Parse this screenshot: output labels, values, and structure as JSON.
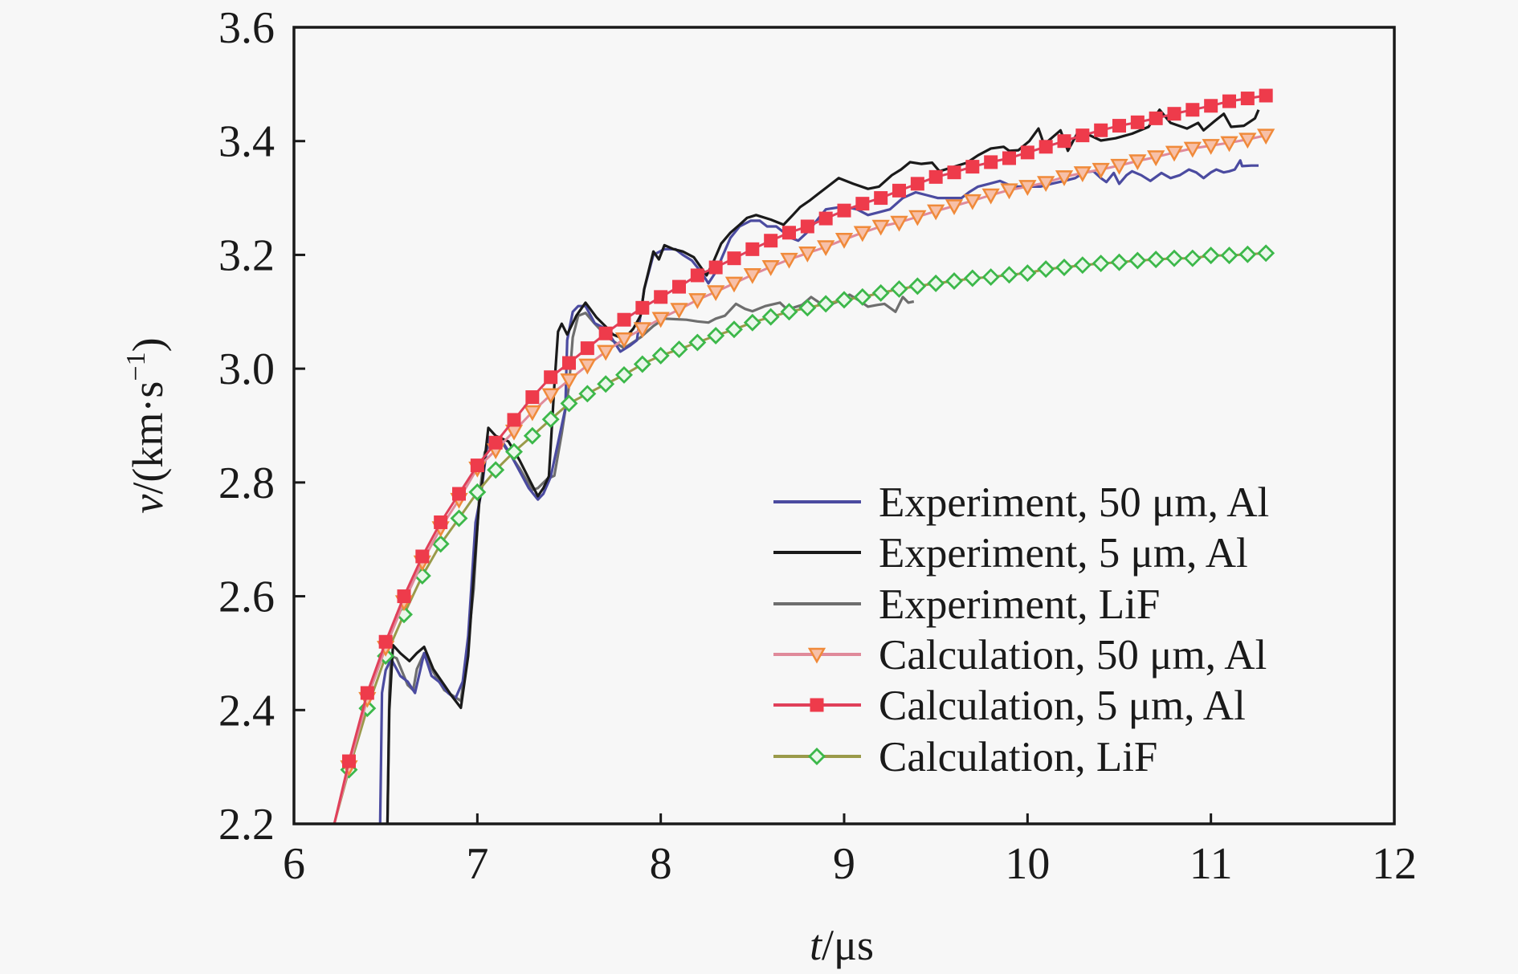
{
  "chart_data": {
    "type": "line",
    "title": "",
    "xlabel": "t/μs",
    "xlabel_parts": {
      "var": "t",
      "unit": "/μs"
    },
    "ylabel": "v/(km·s−1)",
    "ylabel_parts": {
      "var": "v",
      "unit": "/(km·s",
      "sup": "−1",
      "close": ")"
    },
    "xlim": [
      6,
      12
    ],
    "ylim": [
      2.2,
      3.6
    ],
    "xticks": [
      6,
      7,
      8,
      9,
      10,
      11,
      12
    ],
    "xtick_labels": [
      "6",
      "7",
      "8",
      "9",
      "10",
      "11",
      "12"
    ],
    "yticks": [
      2.2,
      2.4,
      2.6,
      2.8,
      3.0,
      3.2,
      3.4,
      3.6
    ],
    "ytick_labels": [
      "2.2",
      "2.4",
      "2.6",
      "2.8",
      "3.0",
      "3.2",
      "3.4",
      "3.6"
    ],
    "grid": false,
    "legend_position": "bottom-right",
    "series": [
      {
        "name": "Experiment, 50 μm, Al",
        "kind": "experiment",
        "color": "#4b4ba0",
        "marker": "none",
        "x": [
          6.47,
          6.48,
          6.5,
          6.53,
          6.58,
          6.62,
          6.66,
          6.71,
          6.75,
          6.79,
          6.84,
          6.88,
          6.92,
          6.95,
          6.99,
          7.02,
          7.06,
          7.1,
          7.14,
          7.18,
          7.23,
          7.28,
          7.33,
          7.36,
          7.4,
          7.44,
          7.48,
          7.49,
          7.52,
          7.55,
          7.59,
          7.64,
          7.7,
          7.78,
          7.83,
          7.87,
          7.91,
          7.96,
          8.02,
          8.08,
          8.12,
          8.17,
          8.22,
          8.26,
          8.3,
          8.34,
          8.38,
          8.43,
          8.49,
          8.54,
          8.58,
          8.63,
          8.67,
          8.71,
          8.75,
          8.8,
          8.85,
          8.9,
          9.0,
          9.07,
          9.13,
          9.19,
          9.25,
          9.32,
          9.39,
          9.45,
          9.51,
          9.57,
          9.64,
          9.68,
          9.73,
          9.79,
          9.85,
          9.92,
          10.0,
          10.07,
          10.13,
          10.2,
          10.26,
          10.31,
          10.36,
          10.4,
          10.43,
          10.47,
          10.5,
          10.54,
          10.57,
          10.62,
          10.67,
          10.73,
          10.78,
          10.83,
          10.88,
          10.92,
          10.96,
          11.0,
          11.03,
          11.07,
          11.1,
          11.13,
          11.16,
          11.17,
          11.22,
          11.26
        ],
        "y": [
          2.2,
          2.43,
          2.47,
          2.49,
          2.46,
          2.45,
          2.43,
          2.5,
          2.46,
          2.45,
          2.43,
          2.42,
          2.45,
          2.53,
          2.73,
          2.78,
          2.88,
          2.87,
          2.87,
          2.85,
          2.82,
          2.79,
          2.77,
          2.78,
          2.81,
          2.87,
          2.93,
          3.05,
          3.1,
          3.11,
          3.11,
          3.08,
          3.07,
          3.03,
          3.04,
          3.05,
          3.14,
          3.2,
          3.21,
          3.21,
          3.2,
          3.19,
          3.17,
          3.15,
          3.17,
          3.2,
          3.23,
          3.25,
          3.26,
          3.26,
          3.25,
          3.25,
          3.24,
          3.23,
          3.225,
          3.24,
          3.26,
          3.28,
          3.285,
          3.28,
          3.27,
          3.275,
          3.28,
          3.3,
          3.31,
          3.305,
          3.3,
          3.3,
          3.3,
          3.31,
          3.32,
          3.325,
          3.33,
          3.32,
          3.32,
          3.32,
          3.325,
          3.33,
          3.335,
          3.345,
          3.347,
          3.335,
          3.328,
          3.344,
          3.325,
          3.34,
          3.347,
          3.34,
          3.33,
          3.344,
          3.335,
          3.34,
          3.35,
          3.345,
          3.335,
          3.345,
          3.35,
          3.345,
          3.347,
          3.35,
          3.366,
          3.356,
          3.357,
          3.357
        ]
      },
      {
        "name": "Experiment, 5 μm, Al",
        "kind": "experiment",
        "color": "#1a1a1a",
        "marker": "none",
        "x": [
          6.51,
          6.52,
          6.54,
          6.58,
          6.63,
          6.67,
          6.71,
          6.76,
          6.82,
          6.86,
          6.91,
          6.95,
          6.98,
          7.01,
          7.02,
          7.06,
          7.1,
          7.17,
          7.23,
          7.29,
          7.33,
          7.36,
          7.39,
          7.42,
          7.44,
          7.46,
          7.49,
          7.54,
          7.59,
          7.65,
          7.7,
          7.74,
          7.8,
          7.85,
          7.89,
          7.91,
          7.96,
          7.99,
          8.02,
          8.07,
          8.12,
          8.18,
          8.25,
          8.29,
          8.33,
          8.38,
          8.43,
          8.47,
          8.52,
          8.6,
          8.67,
          8.72,
          8.76,
          8.81,
          8.85,
          8.91,
          8.97,
          9.05,
          9.13,
          9.19,
          9.26,
          9.31,
          9.36,
          9.42,
          9.48,
          9.52,
          9.6,
          9.67,
          9.73,
          9.8,
          9.87,
          9.9,
          9.95,
          10.01,
          10.06,
          10.09,
          10.13,
          10.18,
          10.22,
          10.28,
          10.34,
          10.4,
          10.48,
          10.57,
          10.66,
          10.72,
          10.78,
          10.87,
          10.93,
          10.96,
          11.02,
          11.07,
          11.11,
          11.18,
          11.24,
          11.26
        ],
        "y": [
          2.2,
          2.4,
          2.514,
          2.5,
          2.486,
          2.5,
          2.511,
          2.472,
          2.444,
          2.425,
          2.404,
          2.495,
          2.637,
          2.764,
          2.783,
          2.896,
          2.882,
          2.872,
          2.839,
          2.801,
          2.776,
          2.79,
          2.811,
          2.97,
          3.065,
          3.079,
          3.06,
          3.093,
          3.116,
          3.09,
          3.074,
          3.06,
          3.052,
          3.07,
          3.093,
          3.14,
          3.206,
          3.192,
          3.217,
          3.21,
          3.206,
          3.196,
          3.164,
          3.19,
          3.22,
          3.239,
          3.253,
          3.265,
          3.27,
          3.262,
          3.253,
          3.27,
          3.284,
          3.295,
          3.305,
          3.32,
          3.335,
          3.325,
          3.316,
          3.32,
          3.34,
          3.35,
          3.363,
          3.36,
          3.362,
          3.347,
          3.355,
          3.362,
          3.375,
          3.387,
          3.39,
          3.383,
          3.384,
          3.4,
          3.422,
          3.394,
          3.405,
          3.419,
          3.383,
          3.419,
          3.41,
          3.401,
          3.405,
          3.413,
          3.425,
          3.455,
          3.432,
          3.422,
          3.432,
          3.419,
          3.435,
          3.448,
          3.425,
          3.427,
          3.44,
          3.455
        ]
      },
      {
        "name": "Experiment, LiF",
        "kind": "experiment",
        "color": "#6e6e6e",
        "marker": "none",
        "x": [
          6.51,
          6.52,
          6.53,
          6.56,
          6.62,
          6.65,
          6.67,
          6.71,
          6.76,
          6.82,
          6.91,
          6.95,
          6.98,
          7.01,
          7.04,
          7.07,
          7.14,
          7.23,
          7.3,
          7.33,
          7.38,
          7.42,
          7.46,
          7.5,
          7.52,
          7.55,
          7.59,
          7.64,
          7.71,
          7.8,
          7.89,
          7.96,
          8.02,
          8.08,
          8.14,
          8.2,
          8.26,
          8.3,
          8.35,
          8.41,
          8.46,
          8.5,
          8.57,
          8.65,
          8.69,
          8.77,
          8.82,
          8.87,
          8.92,
          8.98,
          9.03,
          9.08,
          9.13,
          9.18,
          9.22,
          9.28,
          9.32,
          9.35,
          9.38
        ],
        "y": [
          2.2,
          2.43,
          2.495,
          2.491,
          2.444,
          2.435,
          2.472,
          2.5,
          2.467,
          2.435,
          2.416,
          2.519,
          2.613,
          2.773,
          2.853,
          2.867,
          2.867,
          2.825,
          2.787,
          2.79,
          2.806,
          2.812,
          2.886,
          2.97,
          3.055,
          3.093,
          3.098,
          3.079,
          3.055,
          3.036,
          3.055,
          3.075,
          3.088,
          3.087,
          3.086,
          3.083,
          3.081,
          3.088,
          3.093,
          3.114,
          3.105,
          3.101,
          3.11,
          3.116,
          3.104,
          3.112,
          3.126,
          3.115,
          3.112,
          3.12,
          3.13,
          3.12,
          3.109,
          3.112,
          3.114,
          3.1,
          3.126,
          3.116,
          3.118
        ]
      },
      {
        "name": "Calculation, 50 μm, Al",
        "kind": "calculation",
        "color": "#e08a9a",
        "marker": "triangle-down",
        "marker_color": "#f08a3a",
        "x_start": [
          6.22,
          2.2
        ],
        "x": [
          6.3,
          6.4,
          6.5,
          6.6,
          6.7,
          6.8,
          6.9,
          7.0,
          7.1,
          7.2,
          7.3,
          7.4,
          7.5,
          7.6,
          7.7,
          7.8,
          7.9,
          8.0,
          8.1,
          8.2,
          8.3,
          8.4,
          8.5,
          8.6,
          8.7,
          8.8,
          8.9,
          9.0,
          9.1,
          9.2,
          9.3,
          9.4,
          9.5,
          9.6,
          9.7,
          9.8,
          9.9,
          10.0,
          10.1,
          10.2,
          10.3,
          10.4,
          10.5,
          10.6,
          10.7,
          10.8,
          10.9,
          11.0,
          11.1,
          11.2,
          11.3
        ],
        "y": [
          2.3,
          2.42,
          2.51,
          2.59,
          2.66,
          2.72,
          2.77,
          2.825,
          2.857,
          2.89,
          2.924,
          2.954,
          2.98,
          3.006,
          3.03,
          3.052,
          3.07,
          3.088,
          3.104,
          3.121,
          3.135,
          3.15,
          3.165,
          3.179,
          3.192,
          3.203,
          3.214,
          3.227,
          3.239,
          3.25,
          3.257,
          3.267,
          3.277,
          3.286,
          3.295,
          3.305,
          3.314,
          3.32,
          3.327,
          3.337,
          3.344,
          3.35,
          3.357,
          3.365,
          3.372,
          3.38,
          3.387,
          3.392,
          3.397,
          3.403,
          3.41
        ]
      },
      {
        "name": "Calculation, 5 μm, Al",
        "kind": "calculation",
        "color": "#e0405a",
        "marker": "square",
        "marker_color": "#ee3b4b",
        "x_start": [
          6.22,
          2.2
        ],
        "x": [
          6.3,
          6.4,
          6.5,
          6.6,
          6.7,
          6.8,
          6.9,
          7.0,
          7.1,
          7.2,
          7.3,
          7.4,
          7.5,
          7.6,
          7.7,
          7.8,
          7.9,
          8.0,
          8.1,
          8.2,
          8.3,
          8.4,
          8.5,
          8.6,
          8.7,
          8.8,
          8.9,
          9.0,
          9.1,
          9.2,
          9.3,
          9.4,
          9.5,
          9.6,
          9.7,
          9.8,
          9.9,
          10.0,
          10.1,
          10.2,
          10.3,
          10.4,
          10.5,
          10.6,
          10.7,
          10.8,
          10.9,
          11.0,
          11.1,
          11.2,
          11.3
        ],
        "y": [
          2.31,
          2.43,
          2.52,
          2.6,
          2.67,
          2.73,
          2.78,
          2.83,
          2.87,
          2.91,
          2.95,
          2.985,
          3.01,
          3.036,
          3.062,
          3.086,
          3.107,
          3.126,
          3.144,
          3.164,
          3.178,
          3.194,
          3.21,
          3.225,
          3.239,
          3.25,
          3.264,
          3.278,
          3.29,
          3.3,
          3.313,
          3.325,
          3.337,
          3.345,
          3.355,
          3.363,
          3.37,
          3.38,
          3.39,
          3.4,
          3.41,
          3.419,
          3.427,
          3.433,
          3.44,
          3.448,
          3.455,
          3.462,
          3.47,
          3.475,
          3.48
        ]
      },
      {
        "name": "Calculation, LiF",
        "kind": "calculation",
        "color": "#9a9a4a",
        "marker": "diamond",
        "marker_color": "#3cb84a",
        "x_start": [
          6.22,
          2.2
        ],
        "x": [
          6.3,
          6.4,
          6.5,
          6.6,
          6.7,
          6.8,
          6.9,
          7.0,
          7.1,
          7.2,
          7.3,
          7.4,
          7.5,
          7.6,
          7.7,
          7.8,
          7.9,
          8.0,
          8.1,
          8.2,
          8.3,
          8.4,
          8.5,
          8.6,
          8.7,
          8.8,
          8.9,
          9.0,
          9.1,
          9.2,
          9.3,
          9.4,
          9.5,
          9.6,
          9.7,
          9.8,
          9.9,
          10.0,
          10.1,
          10.2,
          10.3,
          10.4,
          10.5,
          10.6,
          10.7,
          10.8,
          10.9,
          11.0,
          11.1,
          11.2,
          11.3
        ],
        "y": [
          2.295,
          2.403,
          2.495,
          2.568,
          2.636,
          2.692,
          2.737,
          2.783,
          2.822,
          2.854,
          2.882,
          2.911,
          2.939,
          2.956,
          2.973,
          2.989,
          3.008,
          3.023,
          3.034,
          3.046,
          3.058,
          3.069,
          3.081,
          3.091,
          3.1,
          3.107,
          3.114,
          3.121,
          3.126,
          3.133,
          3.14,
          3.145,
          3.15,
          3.154,
          3.159,
          3.161,
          3.165,
          3.168,
          3.175,
          3.178,
          3.182,
          3.185,
          3.187,
          3.19,
          3.192,
          3.194,
          3.194,
          3.199,
          3.199,
          3.201,
          3.203
        ]
      }
    ]
  }
}
